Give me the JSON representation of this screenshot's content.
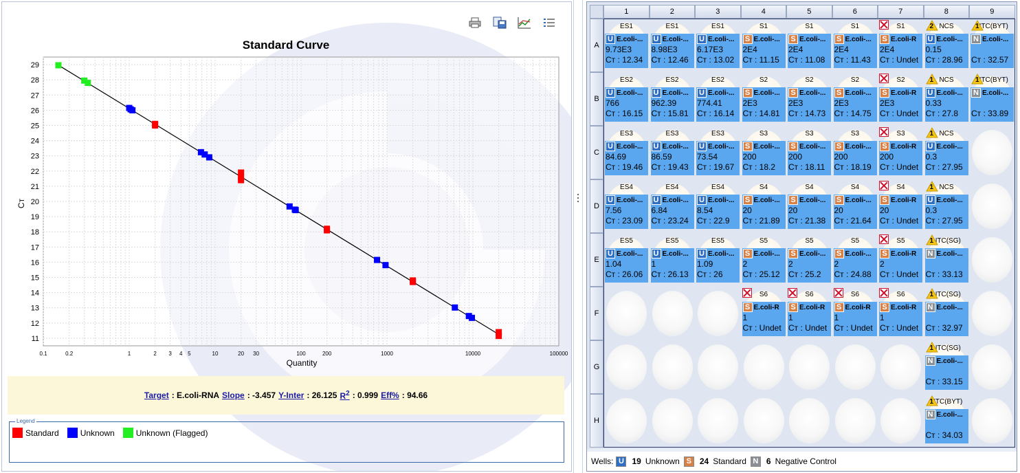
{
  "chart_data": {
    "type": "scatter",
    "title": "Standard Curve",
    "xlabel": "Quantity",
    "ylabel": "Cт",
    "x_scale": "log",
    "xlim": [
      0.1,
      100000
    ],
    "ylim": [
      10.5,
      29.5
    ],
    "x_ticks": [
      "0.1",
      "0.2",
      "1",
      "2",
      "3",
      "4",
      "5",
      "10",
      "20",
      "30",
      "100",
      "200",
      "1000",
      "10000",
      "100000"
    ],
    "y_ticks": [
      "11",
      "12",
      "13",
      "14",
      "15",
      "16",
      "17",
      "18",
      "19",
      "20",
      "21",
      "22",
      "23",
      "24",
      "25",
      "26",
      "27",
      "28",
      "29"
    ],
    "grid": true,
    "fit_line": {
      "x": [
        0.16,
        20000
      ],
      "y": [
        28.87,
        11.25
      ]
    },
    "series": [
      {
        "name": "Standard",
        "color": "#ff0000",
        "points": [
          {
            "x": 2,
            "y": 25.1
          },
          {
            "x": 2,
            "y": 25.0
          },
          {
            "x": 20,
            "y": 21.9
          },
          {
            "x": 20,
            "y": 21.6
          },
          {
            "x": 20,
            "y": 21.4
          },
          {
            "x": 200,
            "y": 18.2
          },
          {
            "x": 200,
            "y": 18.1
          },
          {
            "x": 2000,
            "y": 14.8
          },
          {
            "x": 2000,
            "y": 14.7
          },
          {
            "x": 20000,
            "y": 11.4
          },
          {
            "x": 20000,
            "y": 11.15
          }
        ]
      },
      {
        "name": "Unknown",
        "color": "#0000ff",
        "points": [
          {
            "x": 1.0,
            "y": 26.15
          },
          {
            "x": 1.04,
            "y": 26.06
          },
          {
            "x": 1.09,
            "y": 26.0
          },
          {
            "x": 6.84,
            "y": 23.24
          },
          {
            "x": 7.56,
            "y": 23.09
          },
          {
            "x": 8.54,
            "y": 22.9
          },
          {
            "x": 73.54,
            "y": 19.67
          },
          {
            "x": 84.69,
            "y": 19.46
          },
          {
            "x": 86.59,
            "y": 19.43
          },
          {
            "x": 766,
            "y": 16.15
          },
          {
            "x": 962.39,
            "y": 15.81
          },
          {
            "x": 6170,
            "y": 13.02
          },
          {
            "x": 8980,
            "y": 12.46
          },
          {
            "x": 9730,
            "y": 12.34
          }
        ]
      },
      {
        "name": "Unknown (Flagged)",
        "color": "#22ee22",
        "points": [
          {
            "x": 0.15,
            "y": 28.96
          },
          {
            "x": 0.3,
            "y": 27.95
          },
          {
            "x": 0.33,
            "y": 27.8
          }
        ]
      }
    ]
  },
  "toolbar": {
    "icons": [
      "print-icon",
      "save-icon",
      "graph-icon",
      "list-icon"
    ]
  },
  "summary": {
    "target_label": "Target",
    "target_value": ": E.coli-RNA ",
    "slope_label": "Slope",
    "slope_value": ": -3.457 ",
    "yinter_label": "Y-Inter",
    "yinter_value": ": 26.125 ",
    "r2_label": "R",
    "r2_sup": "2",
    "r2_value": ": 0.999 ",
    "eff_label": "Eff%",
    "eff_value": ": 94.66"
  },
  "legend": {
    "title": "Legend",
    "items": [
      {
        "label": "Standard",
        "color": "#ff0000"
      },
      {
        "label": "Unknown",
        "color": "#0000ff"
      },
      {
        "label": "Unknown (Flagged)",
        "color": "#22ee22"
      }
    ]
  },
  "plate": {
    "columns": [
      "1",
      "2",
      "3",
      "4",
      "5",
      "6",
      "7",
      "8",
      "9"
    ],
    "rows": [
      "A",
      "B",
      "C",
      "D",
      "E",
      "F",
      "G",
      "H"
    ],
    "wells": [
      {
        "row": 0,
        "col": 0,
        "sample": "ES1",
        "task": "U",
        "target": "E.coli-...",
        "qty": "9.73E3",
        "ct": "Cт : 12.34"
      },
      {
        "row": 0,
        "col": 1,
        "sample": "ES1",
        "task": "U",
        "target": "E.coli-...",
        "qty": "8.98E3",
        "ct": "Cт : 12.46"
      },
      {
        "row": 0,
        "col": 2,
        "sample": "ES1",
        "task": "U",
        "target": "E.coli-...",
        "qty": "6.17E3",
        "ct": "Cт : 13.02"
      },
      {
        "row": 0,
        "col": 3,
        "sample": "S1",
        "task": "S",
        "target": "E.coli-...",
        "qty": "2E4",
        "ct": "Cт : 11.15"
      },
      {
        "row": 0,
        "col": 4,
        "sample": "S1",
        "task": "S",
        "target": "E.coli-...",
        "qty": "2E4",
        "ct": "Cт : 11.08"
      },
      {
        "row": 0,
        "col": 5,
        "sample": "S1",
        "task": "S",
        "target": "E.coli-...",
        "qty": "2E4",
        "ct": "Cт : 11.43"
      },
      {
        "row": 0,
        "col": 6,
        "sample": "S1",
        "task": "S",
        "target": "E.coli-R",
        "qty": "2E4",
        "ct": "Cт : Undet",
        "flag": "x"
      },
      {
        "row": 0,
        "col": 7,
        "sample": "NCS",
        "task": "U",
        "target": "E.coli-...",
        "qty": "0.15",
        "ct": "Cт : 28.96",
        "flag": "warn",
        "flag_num": "2"
      },
      {
        "row": 0,
        "col": 8,
        "sample": "NTC(BYT)",
        "task": "N",
        "target": "E.coli-...",
        "qty": "",
        "ct": "Cт : 32.57",
        "flag": "warn",
        "flag_num": "1"
      },
      {
        "row": 1,
        "col": 0,
        "sample": "ES2",
        "task": "U",
        "target": "E.coli-...",
        "qty": "766",
        "ct": "Cт : 16.15"
      },
      {
        "row": 1,
        "col": 1,
        "sample": "ES2",
        "task": "U",
        "target": "E.coli-...",
        "qty": "962.39",
        "ct": "Cт : 15.81"
      },
      {
        "row": 1,
        "col": 2,
        "sample": "ES2",
        "task": "U",
        "target": "E.coli-...",
        "qty": "774.41",
        "ct": "Cт : 16.14"
      },
      {
        "row": 1,
        "col": 3,
        "sample": "S2",
        "task": "S",
        "target": "E.coli-...",
        "qty": "2E3",
        "ct": "Cт : 14.81"
      },
      {
        "row": 1,
        "col": 4,
        "sample": "S2",
        "task": "S",
        "target": "E.coli-...",
        "qty": "2E3",
        "ct": "Cт : 14.73"
      },
      {
        "row": 1,
        "col": 5,
        "sample": "S2",
        "task": "S",
        "target": "E.coli-...",
        "qty": "2E3",
        "ct": "Cт : 14.75"
      },
      {
        "row": 1,
        "col": 6,
        "sample": "S2",
        "task": "S",
        "target": "E.coli-R",
        "qty": "2E3",
        "ct": "Cт : Undet",
        "flag": "x"
      },
      {
        "row": 1,
        "col": 7,
        "sample": "NCS",
        "task": "U",
        "target": "E.coli-...",
        "qty": "0.33",
        "ct": "Cт : 27.8",
        "flag": "warn",
        "flag_num": "1"
      },
      {
        "row": 1,
        "col": 8,
        "sample": "NTC(BYT)",
        "task": "N",
        "target": "E.coli-...",
        "qty": "",
        "ct": "Cт : 33.89",
        "flag": "warn",
        "flag_num": "1"
      },
      {
        "row": 2,
        "col": 0,
        "sample": "ES3",
        "task": "U",
        "target": "E.coli-...",
        "qty": "84.69",
        "ct": "Cт : 19.46"
      },
      {
        "row": 2,
        "col": 1,
        "sample": "ES3",
        "task": "U",
        "target": "E.coli-...",
        "qty": "86.59",
        "ct": "Cт : 19.43"
      },
      {
        "row": 2,
        "col": 2,
        "sample": "ES3",
        "task": "U",
        "target": "E.coli-...",
        "qty": "73.54",
        "ct": "Cт : 19.67"
      },
      {
        "row": 2,
        "col": 3,
        "sample": "S3",
        "task": "S",
        "target": "E.coli-...",
        "qty": "200",
        "ct": "Cт : 18.2"
      },
      {
        "row": 2,
        "col": 4,
        "sample": "S3",
        "task": "S",
        "target": "E.coli-...",
        "qty": "200",
        "ct": "Cт : 18.11"
      },
      {
        "row": 2,
        "col": 5,
        "sample": "S3",
        "task": "S",
        "target": "E.coli-...",
        "qty": "200",
        "ct": "Cт : 18.19"
      },
      {
        "row": 2,
        "col": 6,
        "sample": "S3",
        "task": "S",
        "target": "E.coli-R",
        "qty": "200",
        "ct": "Cт : Undet",
        "flag": "x"
      },
      {
        "row": 2,
        "col": 7,
        "sample": "NCS",
        "task": "U",
        "target": "E.coli-...",
        "qty": "0.3",
        "ct": "Cт : 27.95",
        "flag": "warn",
        "flag_num": "1"
      },
      {
        "row": 3,
        "col": 0,
        "sample": "ES4",
        "task": "U",
        "target": "E.coli-...",
        "qty": "7.56",
        "ct": "Cт : 23.09"
      },
      {
        "row": 3,
        "col": 1,
        "sample": "ES4",
        "task": "U",
        "target": "E.coli-...",
        "qty": "6.84",
        "ct": "Cт : 23.24"
      },
      {
        "row": 3,
        "col": 2,
        "sample": "ES4",
        "task": "U",
        "target": "E.coli-...",
        "qty": "8.54",
        "ct": "Cт : 22.9"
      },
      {
        "row": 3,
        "col": 3,
        "sample": "S4",
        "task": "S",
        "target": "E.coli-...",
        "qty": "20",
        "ct": "Cт : 21.89"
      },
      {
        "row": 3,
        "col": 4,
        "sample": "S4",
        "task": "S",
        "target": "E.coli-...",
        "qty": "20",
        "ct": "Cт : 21.38"
      },
      {
        "row": 3,
        "col": 5,
        "sample": "S4",
        "task": "S",
        "target": "E.coli-...",
        "qty": "20",
        "ct": "Cт : 21.64"
      },
      {
        "row": 3,
        "col": 6,
        "sample": "S4",
        "task": "S",
        "target": "E.coli-R",
        "qty": "20",
        "ct": "Cт : Undet",
        "flag": "x"
      },
      {
        "row": 3,
        "col": 7,
        "sample": "NCS",
        "task": "U",
        "target": "E.coli-...",
        "qty": "0.3",
        "ct": "Cт : 27.95",
        "flag": "warn",
        "flag_num": "1"
      },
      {
        "row": 4,
        "col": 0,
        "sample": "ES5",
        "task": "U",
        "target": "E.coli-...",
        "qty": "1.04",
        "ct": "Cт : 26.06"
      },
      {
        "row": 4,
        "col": 1,
        "sample": "ES5",
        "task": "U",
        "target": "E.coli-...",
        "qty": "1",
        "ct": "Cт : 26.13"
      },
      {
        "row": 4,
        "col": 2,
        "sample": "ES5",
        "task": "U",
        "target": "E.coli-...",
        "qty": "1.09",
        "ct": "Cт : 26"
      },
      {
        "row": 4,
        "col": 3,
        "sample": "S5",
        "task": "S",
        "target": "E.coli-...",
        "qty": "2",
        "ct": "Cт : 25.12"
      },
      {
        "row": 4,
        "col": 4,
        "sample": "S5",
        "task": "S",
        "target": "E.coli-...",
        "qty": "2",
        "ct": "Cт : 25.2"
      },
      {
        "row": 4,
        "col": 5,
        "sample": "S5",
        "task": "S",
        "target": "E.coli-...",
        "qty": "2",
        "ct": "Cт : 24.88"
      },
      {
        "row": 4,
        "col": 6,
        "sample": "S5",
        "task": "S",
        "target": "E.coli-R",
        "qty": "2",
        "ct": "Cт : Undet",
        "flag": "x"
      },
      {
        "row": 4,
        "col": 7,
        "sample": "NTC(SG)",
        "task": "N",
        "target": "E.coli-...",
        "qty": "",
        "ct": "Cт : 33.13",
        "flag": "warn",
        "flag_num": "1"
      },
      {
        "row": 5,
        "col": 3,
        "sample": "S6",
        "task": "S",
        "target": "E.coli-R",
        "qty": "1",
        "ct": "Cт : Undet",
        "flag": "x"
      },
      {
        "row": 5,
        "col": 4,
        "sample": "S6",
        "task": "S",
        "target": "E.coli-R",
        "qty": "1",
        "ct": "Cт : Undet",
        "flag": "x"
      },
      {
        "row": 5,
        "col": 5,
        "sample": "S6",
        "task": "S",
        "target": "E.coli-R",
        "qty": "1",
        "ct": "Cт : Undet",
        "flag": "x"
      },
      {
        "row": 5,
        "col": 6,
        "sample": "S6",
        "task": "S",
        "target": "E.coli-R",
        "qty": "1",
        "ct": "Cт : Undet",
        "flag": "x"
      },
      {
        "row": 5,
        "col": 7,
        "sample": "NTC(SG)",
        "task": "N",
        "target": "E.coli-...",
        "qty": "",
        "ct": "Cт : 32.97",
        "flag": "warn",
        "flag_num": "1"
      },
      {
        "row": 6,
        "col": 7,
        "sample": "NTC(SG)",
        "task": "N",
        "target": "E.coli-...",
        "qty": "",
        "ct": "Cт : 33.15",
        "flag": "warn",
        "flag_num": "1"
      },
      {
        "row": 7,
        "col": 7,
        "sample": "NTC(BYT)",
        "task": "N",
        "target": "E.coli-...",
        "qty": "",
        "ct": "Cт : 34.03",
        "flag": "warn",
        "flag_num": "1"
      }
    ]
  },
  "footer": {
    "label": "Wells:",
    "items": [
      {
        "icon": "U",
        "count": "19",
        "text": "Unknown",
        "color": "#2f6fc4"
      },
      {
        "icon": "S",
        "count": "24",
        "text": "Standard",
        "color": "#d98045"
      },
      {
        "icon": "N",
        "count": "6",
        "text": "Negative Control",
        "color": "#8a8f96"
      }
    ]
  }
}
